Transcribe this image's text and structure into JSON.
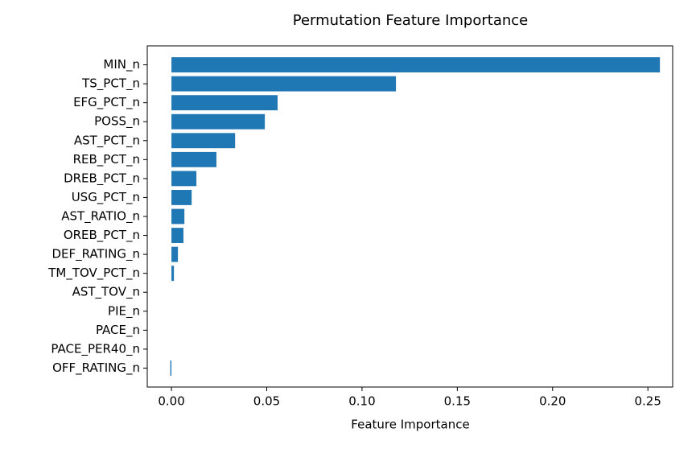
{
  "chart_data": {
    "type": "barh",
    "title": "Permutation Feature Importance",
    "x_label": "Feature Importance",
    "categories": [
      "MIN_n",
      "TS_PCT_n",
      "EFG_PCT_n",
      "POSS_n",
      "AST_PCT_n",
      "REB_PCT_n",
      "DREB_PCT_n",
      "USG_PCT_n",
      "AST_RATIO_n",
      "OREB_PCT_n",
      "DEF_RATING_n",
      "TM_TOV_PCT_n",
      "AST_TOV_n",
      "PIE_n",
      "PACE_n",
      "PACE_PER40_n",
      "OFF_RATING_n"
    ],
    "values": [
      0.2563,
      0.1178,
      0.0557,
      0.049,
      0.0334,
      0.0236,
      0.0131,
      0.0106,
      0.0068,
      0.0063,
      0.0034,
      0.0013,
      0,
      0,
      0,
      0,
      -0.0006
    ],
    "color": "#1f77b4",
    "xlim": [
      -0.0127,
      0.263
    ],
    "xticks": [
      {
        "value": 0,
        "label": "0.00"
      },
      {
        "value": 0.05,
        "label": "0.05"
      },
      {
        "value": 0.1,
        "label": "0.10"
      },
      {
        "value": 0.15,
        "label": "0.15"
      },
      {
        "value": 0.2,
        "label": "0.20"
      },
      {
        "value": 0.25,
        "label": "0.25"
      }
    ],
    "grid": false
  }
}
